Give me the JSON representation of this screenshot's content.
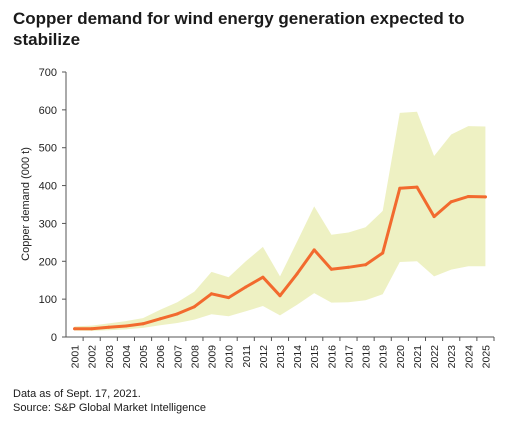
{
  "chart_data": {
    "type": "line",
    "title": "Copper demand for wind energy generation expected to stabilize",
    "ylabel": "Copper demand (000 t)",
    "xlabel": "",
    "ylim": [
      0,
      700
    ],
    "yticks": [
      0,
      100,
      200,
      300,
      400,
      500,
      600,
      700
    ],
    "grid": false,
    "legend": "none",
    "categories": [
      "2001",
      "2002",
      "2003",
      "2004",
      "2005",
      "2006",
      "2007",
      "2008",
      "2009",
      "2010",
      "2011",
      "2012",
      "2013",
      "2014",
      "2015",
      "2016",
      "2017",
      "2018",
      "2019",
      "2020",
      "2021",
      "2022",
      "2023",
      "2024",
      "2025"
    ],
    "series": [
      {
        "values": [
          22,
          22,
          26,
          29,
          35,
          48,
          61,
          80,
          114,
          104,
          132,
          158,
          109,
          167,
          230,
          179,
          184,
          191,
          222,
          393,
          396,
          318,
          357,
          371,
          370
        ]
      }
    ],
    "range_band": {
      "upper": [
        28,
        30,
        36,
        42,
        50,
        72,
        92,
        120,
        172,
        158,
        200,
        238,
        160,
        252,
        345,
        270,
        276,
        290,
        333,
        592,
        595,
        478,
        535,
        557,
        556
      ],
      "lower": [
        17,
        16,
        18,
        20,
        24,
        31,
        37,
        46,
        60,
        55,
        68,
        82,
        57,
        85,
        116,
        91,
        92,
        97,
        113,
        198,
        200,
        160,
        178,
        187,
        187
      ]
    },
    "colors": {
      "line": "#f26a2e",
      "band": "#eef1c3",
      "axis": "#555555",
      "text": "#222222"
    }
  },
  "footnotes": {
    "date_note": "Data as of Sept. 17, 2021.",
    "source": "Source: S&P Global Market Intelligence"
  }
}
